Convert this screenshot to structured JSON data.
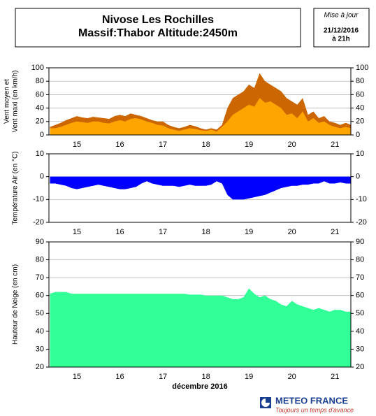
{
  "header": {
    "title": [
      "Nivose Les Rochilles",
      "Massif:Thabor Altitude:2450m"
    ],
    "update": [
      "Mise à jour",
      "21/12/2016",
      "à 21h"
    ]
  },
  "footer": {
    "brand": "METEO FRANCE",
    "tagline": "Toujours un temps d'avance"
  },
  "chart_data": [
    {
      "type": "area",
      "ylabel": [
        "Vent moyen et",
        "Vent maxi (en km/h)"
      ],
      "x": [
        14.875,
        15.0,
        15.125,
        15.25,
        15.375,
        15.5,
        15.625,
        15.75,
        15.875,
        16.0,
        16.125,
        16.25,
        16.375,
        16.5,
        16.625,
        16.75,
        16.875,
        17.0,
        17.125,
        17.25,
        17.375,
        17.5,
        17.625,
        17.75,
        17.875,
        18.0,
        18.125,
        18.25,
        18.375,
        18.5,
        18.625,
        18.75,
        18.875,
        19.0,
        19.125,
        19.25,
        19.375,
        19.5,
        19.625,
        19.75,
        19.875,
        20.0,
        20.125,
        20.25,
        20.375,
        20.5,
        20.625,
        20.75,
        20.875,
        21.0,
        21.125,
        21.25,
        21.375,
        21.5,
        21.625,
        21.75,
        21.875
      ],
      "series": [
        {
          "name": "Vent maxi",
          "color": "#cc6600",
          "values": [
            12,
            15,
            18,
            22,
            25,
            28,
            26,
            25,
            27,
            26,
            25,
            24,
            28,
            30,
            28,
            32,
            30,
            28,
            25,
            22,
            20,
            20,
            15,
            12,
            10,
            12,
            15,
            13,
            10,
            8,
            10,
            8,
            15,
            40,
            55,
            60,
            65,
            75,
            70,
            92,
            80,
            75,
            70,
            65,
            55,
            50,
            45,
            55,
            30,
            35,
            25,
            28,
            20,
            18,
            15,
            18,
            15
          ]
        },
        {
          "name": "Vent moyen",
          "color": "#ffa500",
          "values": [
            10,
            10,
            12,
            15,
            18,
            20,
            19,
            18,
            20,
            20,
            18,
            17,
            20,
            22,
            20,
            24,
            25,
            23,
            20,
            18,
            15,
            14,
            10,
            8,
            6,
            8,
            10,
            9,
            7,
            6,
            8,
            5,
            12,
            20,
            30,
            35,
            40,
            45,
            42,
            55,
            48,
            50,
            45,
            40,
            30,
            32,
            25,
            35,
            20,
            25,
            18,
            20,
            15,
            12,
            10,
            12,
            10
          ]
        }
      ],
      "xlim": [
        14.85,
        21.87
      ],
      "xticks": [
        {
          "value": 15.5,
          "label": "15"
        },
        {
          "value": 16.5,
          "label": "16"
        },
        {
          "value": 17.5,
          "label": "17"
        },
        {
          "value": 18.5,
          "label": "18"
        },
        {
          "value": 19.5,
          "label": "19"
        },
        {
          "value": 20.5,
          "label": "20"
        },
        {
          "value": 21.5,
          "label": "21"
        }
      ],
      "ylim": [
        0,
        100
      ],
      "yticks": [
        0,
        20,
        40,
        60,
        80,
        100
      ],
      "grid": true
    },
    {
      "type": "area",
      "ylabel": [
        "Température Air (en °C)"
      ],
      "x": [
        14.875,
        15.0,
        15.125,
        15.25,
        15.375,
        15.5,
        15.625,
        15.75,
        15.875,
        16.0,
        16.125,
        16.25,
        16.375,
        16.5,
        16.625,
        16.75,
        16.875,
        17.0,
        17.125,
        17.25,
        17.375,
        17.5,
        17.625,
        17.75,
        17.875,
        18.0,
        18.125,
        18.25,
        18.375,
        18.5,
        18.625,
        18.75,
        18.875,
        19.0,
        19.125,
        19.25,
        19.375,
        19.5,
        19.625,
        19.75,
        19.875,
        20.0,
        20.125,
        20.25,
        20.375,
        20.5,
        20.625,
        20.75,
        20.875,
        21.0,
        21.125,
        21.25,
        21.375,
        21.5,
        21.625,
        21.75,
        21.875
      ],
      "series": [
        {
          "name": "Température",
          "color": "#0000ff",
          "values": [
            -3,
            -3,
            -3.5,
            -4,
            -5,
            -5.5,
            -5,
            -4.5,
            -4,
            -3.5,
            -4,
            -4.5,
            -5,
            -5.5,
            -5.5,
            -5,
            -4.5,
            -3,
            -2,
            -3,
            -3.5,
            -4,
            -4,
            -4,
            -4.5,
            -4,
            -3.5,
            -4,
            -4,
            -4,
            -3.5,
            -2,
            -3,
            -8,
            -10,
            -10,
            -10,
            -9.5,
            -9,
            -8.5,
            -8,
            -7,
            -6,
            -5,
            -4.5,
            -4,
            -4,
            -3.5,
            -3.5,
            -3,
            -3,
            -2,
            -3,
            -3,
            -2.5,
            -3,
            -3
          ]
        }
      ],
      "xlim": [
        14.85,
        21.87
      ],
      "xticks": [
        {
          "value": 15.5,
          "label": "15"
        },
        {
          "value": 16.5,
          "label": "16"
        },
        {
          "value": 17.5,
          "label": "17"
        },
        {
          "value": 18.5,
          "label": "18"
        },
        {
          "value": 19.5,
          "label": "19"
        },
        {
          "value": 20.5,
          "label": "20"
        },
        {
          "value": 21.5,
          "label": "21"
        }
      ],
      "ylim": [
        -20,
        10
      ],
      "yticks": [
        -20,
        -10,
        0,
        10
      ],
      "grid": true
    },
    {
      "type": "area",
      "ylabel": [
        "Hauteur de Neige (en cm)"
      ],
      "xlabel": "décembre 2016",
      "x": [
        14.875,
        15.0,
        15.125,
        15.25,
        15.375,
        15.5,
        15.625,
        15.75,
        15.875,
        16.0,
        16.125,
        16.25,
        16.375,
        16.5,
        16.625,
        16.75,
        16.875,
        17.0,
        17.125,
        17.25,
        17.375,
        17.5,
        17.625,
        17.75,
        17.875,
        18.0,
        18.125,
        18.25,
        18.375,
        18.5,
        18.625,
        18.75,
        18.875,
        19.0,
        19.125,
        19.25,
        19.375,
        19.5,
        19.625,
        19.75,
        19.875,
        20.0,
        20.125,
        20.25,
        20.375,
        20.5,
        20.625,
        20.75,
        20.875,
        21.0,
        21.125,
        21.25,
        21.375,
        21.5,
        21.625,
        21.75,
        21.875
      ],
      "series": [
        {
          "name": "Hauteur de neige",
          "color": "#33ff99",
          "values": [
            61,
            62,
            62,
            62,
            61,
            61,
            61,
            61,
            61,
            61,
            61,
            61,
            61,
            61,
            61,
            61,
            61,
            61,
            61,
            61,
            61,
            61,
            61,
            61,
            61,
            61,
            60.5,
            60.5,
            60.5,
            60,
            60,
            60,
            60,
            59,
            58,
            58,
            59,
            64,
            61,
            59,
            60,
            58,
            57,
            55,
            54,
            57,
            55,
            54,
            53,
            52,
            53,
            52,
            51,
            52,
            52,
            51,
            51
          ]
        }
      ],
      "xlim": [
        14.85,
        21.87
      ],
      "xticks": [
        {
          "value": 15.5,
          "label": "15"
        },
        {
          "value": 16.5,
          "label": "16"
        },
        {
          "value": 17.5,
          "label": "17"
        },
        {
          "value": 18.5,
          "label": "18"
        },
        {
          "value": 19.5,
          "label": "19"
        },
        {
          "value": 20.5,
          "label": "20"
        },
        {
          "value": 21.5,
          "label": "21"
        }
      ],
      "ylim": [
        20,
        90
      ],
      "yticks": [
        20,
        30,
        40,
        50,
        60,
        70,
        80,
        90
      ],
      "grid": true
    }
  ]
}
